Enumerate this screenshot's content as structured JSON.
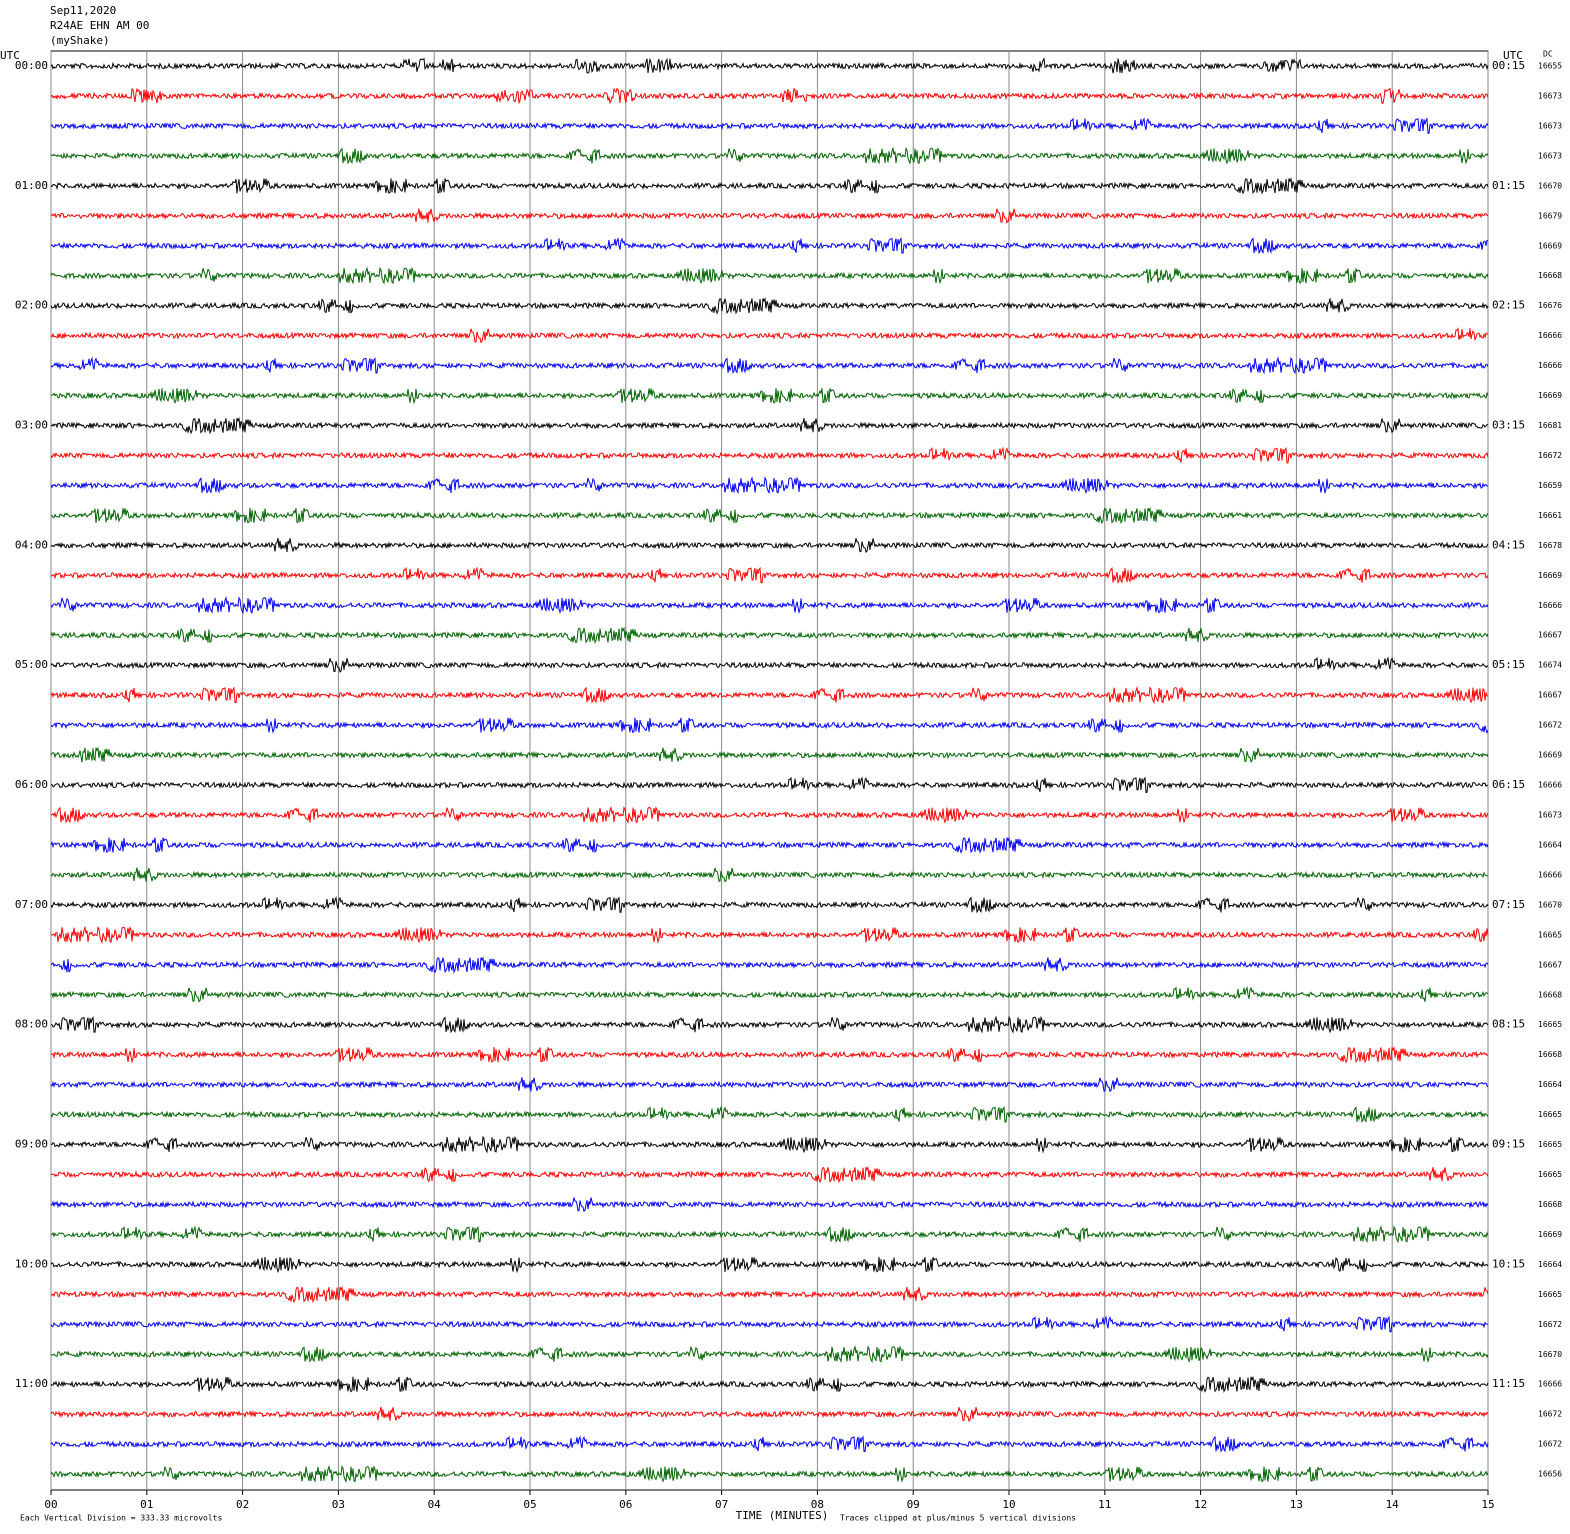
{
  "chart_data": {
    "type": "helicorder",
    "title_lines": [
      "Sep11,2020",
      "R24AE EHN AM 00",
      "(myShake)"
    ],
    "left_axis_label": "UTC",
    "right_axis_label": "UTC",
    "dc_label": "DC",
    "colors": [
      "#000000",
      "#ff0000",
      "#0000ff",
      "#006400"
    ],
    "left_labels": [
      "00:00",
      null,
      null,
      null,
      "01:00",
      null,
      null,
      null,
      "02:00",
      null,
      null,
      null,
      "03:00",
      null,
      null,
      null,
      "04:00",
      null,
      null,
      null,
      "05:00",
      null,
      null,
      null,
      "06:00",
      null,
      null,
      null,
      "07:00",
      null,
      null,
      null,
      "08:00",
      null,
      null,
      null,
      "09:00",
      null,
      null,
      null,
      "10:00",
      null,
      null,
      null,
      "11:00",
      null,
      null,
      null
    ],
    "right_labels": [
      "00:15",
      null,
      null,
      null,
      "01:15",
      null,
      null,
      null,
      "02:15",
      null,
      null,
      null,
      "03:15",
      null,
      null,
      null,
      "04:15",
      null,
      null,
      null,
      "05:15",
      null,
      null,
      null,
      "06:15",
      null,
      null,
      null,
      "07:15",
      null,
      null,
      null,
      "08:15",
      null,
      null,
      null,
      "09:15",
      null,
      null,
      null,
      "10:15",
      null,
      null,
      null,
      "11:15",
      null,
      null,
      null
    ],
    "dc_values": [
      16655,
      16673,
      16673,
      16673,
      16670,
      16679,
      16669,
      16668,
      16676,
      16666,
      16666,
      16669,
      16681,
      16672,
      16659,
      16661,
      16678,
      16669,
      16666,
      16667,
      16674,
      16667,
      16672,
      16669,
      16666,
      16673,
      16664,
      16666,
      16670,
      16665,
      16667,
      16668,
      16665,
      16668,
      16664,
      16665,
      16665,
      16665,
      16668,
      16669,
      16664,
      16665,
      16672,
      16670,
      16666,
      16672,
      16672,
      16656
    ],
    "xlim": [
      0,
      15
    ],
    "xticks": [
      {
        "value": 0,
        "label": "00"
      },
      {
        "value": 1,
        "label": "01"
      },
      {
        "value": 2,
        "label": "02"
      },
      {
        "value": 3,
        "label": "03"
      },
      {
        "value": 4,
        "label": "04"
      },
      {
        "value": 5,
        "label": "05"
      },
      {
        "value": 6,
        "label": "06"
      },
      {
        "value": 7,
        "label": "07"
      },
      {
        "value": 8,
        "label": "08"
      },
      {
        "value": 9,
        "label": "09"
      },
      {
        "value": 10,
        "label": "10"
      },
      {
        "value": 11,
        "label": "11"
      },
      {
        "value": 12,
        "label": "12"
      },
      {
        "value": 13,
        "label": "13"
      },
      {
        "value": 14,
        "label": "14"
      },
      {
        "value": 15,
        "label": "15"
      }
    ],
    "x_label": "TIME (MINUTES)",
    "scale_note": "Each Vertical Division =  333.33 microvolts",
    "clip_note": "Traces clipped at plus/minus 5 vertical divisions"
  }
}
